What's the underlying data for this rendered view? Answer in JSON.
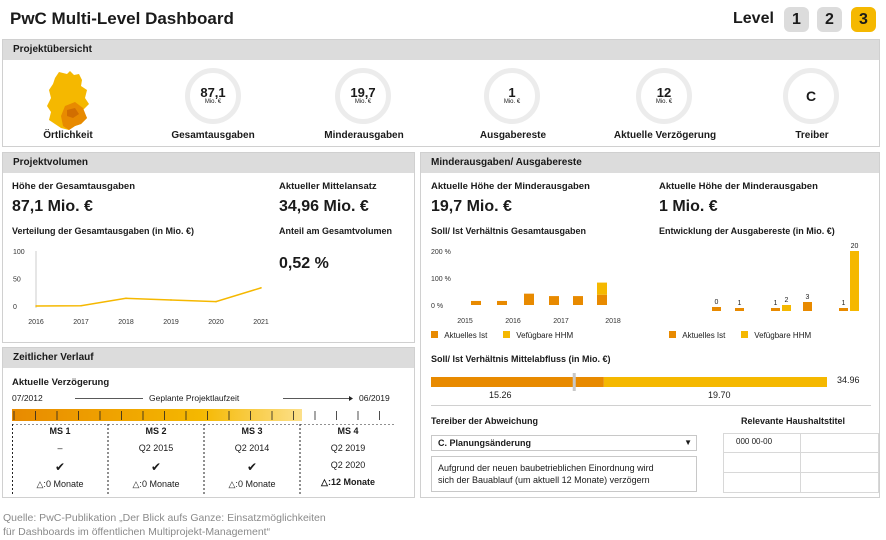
{
  "header": {
    "title": "PwC Multi-Level Dashboard",
    "level_label": "Level",
    "levels": [
      "1",
      "2",
      "3"
    ],
    "active_level": "3"
  },
  "overview": {
    "title": "Projektübersicht",
    "location_label": "Örtlichkeit",
    "items": [
      {
        "value": "87,1",
        "unit": "Mio. €",
        "label": "Gesamtausgaben"
      },
      {
        "value": "19,7",
        "unit": "Mio. €",
        "label": "Minderausgaben"
      },
      {
        "value": "1",
        "unit": "Mio. €",
        "label": "Ausgabereste"
      },
      {
        "value": "12",
        "unit": "Mio. €",
        "label": "Aktuelle Verzögerung"
      },
      {
        "value": "C",
        "unit": "",
        "label": "Treiber"
      }
    ]
  },
  "volume": {
    "title": "Projektvolumen",
    "total_label": "Höhe der Gesamtausgaben",
    "total_value": "87,1 Mio. €",
    "mittel_label": "Aktueller Mittelansatz",
    "mittel_value": "34,96 Mio. €",
    "chart_title": "Verteilung der Gesamtausgaben (in Mio. €)",
    "anteil_label": "Anteil am Gesamtvolumen",
    "anteil_value": "0,52 %"
  },
  "minder": {
    "title": "Minderausgaben/ Ausgabereste",
    "left_label": "Aktuelle Höhe der Minderausgaben",
    "left_value": "19,7 Mio. €",
    "right_label": "Aktuelle Höhe der Minderausgaben",
    "right_value": "1 Mio. €",
    "left_chart_title": "Soll/ Ist Verhältnis Gesamtausgaben",
    "right_chart_title": "Entwicklung der Ausgabereste (in Mio. €)",
    "legend_ist": "Aktuelles Ist",
    "legend_hhm": "Vefügbare HHM",
    "abfluss_title": "Soll/ Ist Verhältnis Mittelabfluss (in Mio. €)",
    "abfluss_ist": "15.26",
    "abfluss_rest": "19.70",
    "abfluss_total": "34.96"
  },
  "zeit": {
    "title": "Zeitlicher Verlauf",
    "delay_label": "Aktuelle Verzögerung",
    "start": "07/2012",
    "end": "06/2019",
    "laufzeit": "Geplante Projektlaufzeit",
    "milestones": [
      {
        "name": "MS 1",
        "plan": "–",
        "actual": "",
        "check": "✔",
        "delay": "△:0 Monate"
      },
      {
        "name": "MS 2",
        "plan": "Q2 2015",
        "actual": "",
        "check": "✔",
        "delay": "△:0 Monate"
      },
      {
        "name": "MS 3",
        "plan": "Q2 2014",
        "actual": "",
        "check": "✔",
        "delay": "△:0 Monate"
      },
      {
        "name": "MS 4",
        "plan": "Q2 2019",
        "actual": "Q2 2020",
        "check": "",
        "delay": "△:12 Monate"
      }
    ]
  },
  "treiber": {
    "label": "Tereiber der Abweichung",
    "selected": "C. Planungsänderung",
    "text_line1": "Aufgrund der neuen baubetrieblichen Einordnung wird",
    "text_line2": "sich der Bauablauf (um aktuell 12 Monate) verzögern",
    "haushalt_label": "Relevante Haushaltstitel",
    "haushalt_first": "000 00-00"
  },
  "footer": {
    "line1": "Quelle: PwC-Publikation „Der Blick aufs Ganze: Einsatzmöglichkeiten",
    "line2": "für Dashboards im öffentlichen Multiprojekt-Management“"
  },
  "colors": {
    "dark_orange": "#e88a00",
    "light_orange": "#f5b800",
    "line_orange": "#f5b800",
    "gray_panel": "#dcdcdc"
  },
  "chart_data": [
    {
      "type": "line",
      "title": "Verteilung der Gesamtausgaben (in Mio. €)",
      "x": [
        "2016",
        "2017",
        "2018",
        "2019",
        "2020",
        "2021"
      ],
      "values": [
        0,
        0.5,
        14,
        11,
        8,
        33
      ],
      "ylim": [
        0,
        100
      ],
      "yticks": [
        "100",
        "50",
        "0"
      ]
    },
    {
      "type": "bar",
      "title": "Soll/ Ist Verhältnis Gesamtausgaben",
      "x_ticks": [
        "2015",
        "2016",
        "2017",
        "2018"
      ],
      "ylim": [
        0,
        200
      ],
      "yticks": [
        "200 %",
        "100 %",
        "0 %"
      ],
      "series": [
        {
          "name": "Aktuelles Ist",
          "values": [
            15,
            15,
            42,
            33,
            33,
            38
          ]
        },
        {
          "name": "Vefügbare HHM",
          "values": [
            0,
            0,
            0,
            0,
            0,
            45
          ]
        }
      ]
    },
    {
      "type": "bar",
      "title": "Entwicklung der Ausgabereste (in Mio. €)",
      "series": [
        {
          "name": "Aktuelles Ist",
          "values": [
            0,
            1,
            1,
            3,
            1
          ]
        },
        {
          "name": "Vefügbare HHM",
          "values": [
            0,
            0,
            2,
            0,
            20
          ]
        }
      ],
      "data_labels": [
        "0",
        "1",
        "1",
        "2",
        "3",
        "1",
        "20"
      ]
    },
    {
      "type": "bar",
      "title": "Soll/ Ist Verhältnis Mittelabfluss (in Mio. €)",
      "series": [
        {
          "name": "Aktuelles Ist",
          "values": [
            15.26
          ]
        },
        {
          "name": "Vefügbare HHM",
          "values": [
            19.7
          ]
        }
      ],
      "total": 34.96
    }
  ]
}
